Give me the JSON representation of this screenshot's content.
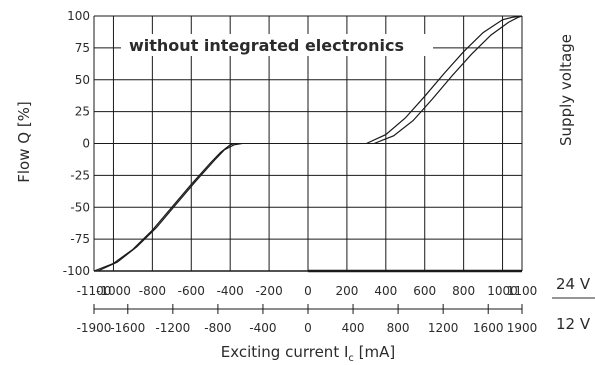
{
  "chart_data": {
    "type": "line",
    "title": "without integrated electronics",
    "ylabel": "Flow Q [%]",
    "right_label": "Supply voltage",
    "xlabel": "Exciting current I",
    "xlabel_subscript": "c",
    "xlabel_unit": " [mA]",
    "scales": [
      {
        "voltage": "24 V",
        "xlim": [
          -1100,
          1100
        ],
        "ticks": [
          "-1100",
          "-1000",
          "-800",
          "-600",
          "-400",
          "-200",
          "0",
          "200",
          "400",
          "600",
          "800",
          "1000",
          "1100"
        ]
      },
      {
        "voltage": "12 V",
        "xlim": [
          -1900,
          1900
        ],
        "ticks": [
          "-1900",
          "-1600",
          "-1200",
          "-800",
          "-400",
          "0",
          "400",
          "800",
          "1200",
          "1600",
          "1900"
        ]
      }
    ],
    "ylim": [
      -100,
      100
    ],
    "yticks": [
      "100",
      "75",
      "50",
      "25",
      "0",
      "-25",
      "-50",
      "-75",
      "-100"
    ],
    "grid": true,
    "series": [
      {
        "x": [
          -1100,
          -1000,
          -900,
          -800,
          -700,
          -600,
          -500,
          -450,
          -400,
          -380
        ],
        "y": [
          -100,
          -94,
          -83,
          -68,
          -50,
          -32,
          -15,
          -7,
          -1,
          0
        ]
      },
      {
        "x": [
          -1080,
          -980,
          -880,
          -780,
          -680,
          -580,
          -480,
          -430,
          -380,
          -340
        ],
        "y": [
          -100,
          -93,
          -81,
          -66,
          -48,
          -30,
          -13,
          -5,
          -1,
          0
        ]
      },
      {
        "x": [
          300,
          400,
          500,
          600,
          700,
          800,
          900,
          1000,
          1050,
          1100
        ],
        "y": [
          0,
          7,
          20,
          37,
          55,
          72,
          87,
          97,
          99,
          100
        ]
      },
      {
        "x": [
          340,
          440,
          540,
          640,
          740,
          840,
          940,
          1030,
          1080,
          1100
        ],
        "y": [
          0,
          6,
          18,
          35,
          53,
          70,
          85,
          95,
          99,
          100
        ]
      }
    ]
  }
}
